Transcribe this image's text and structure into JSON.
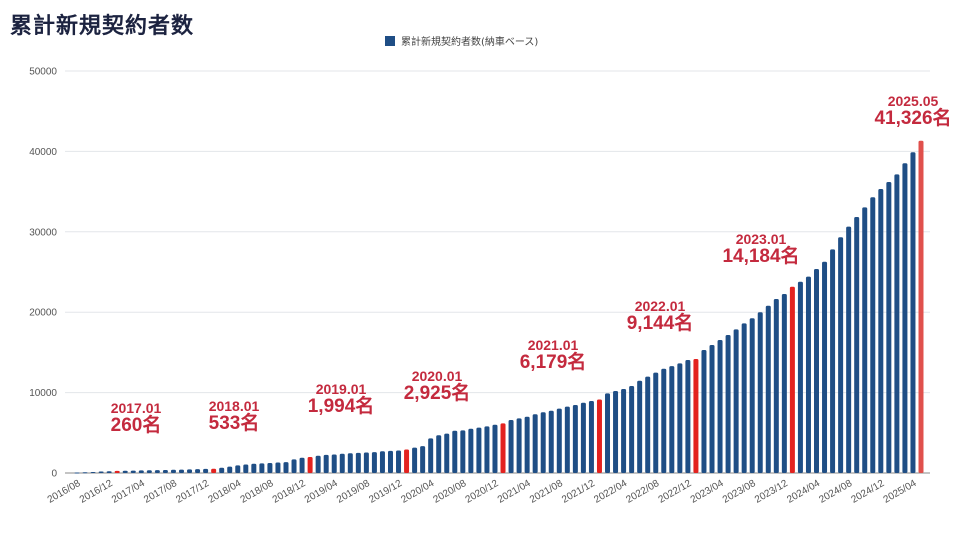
{
  "title": "累計新規契約者数",
  "chart_data": {
    "type": "bar",
    "title": "累計新規契約者数",
    "legend": [
      {
        "name": "累計新規契約者数(納車ベース)",
        "color": "#1f4e85",
        "placement": "top-center"
      }
    ],
    "xlabel": "",
    "ylabel": "",
    "ylim": [
      0,
      50000
    ],
    "yticks": [
      0,
      10000,
      20000,
      30000,
      40000,
      50000
    ],
    "grid": true,
    "colors": {
      "bar": "#1f4e85",
      "highlight": "#e3221f",
      "last": "#e0504c",
      "annotation": "#c42a3e"
    },
    "categories": [
      "2016/08",
      "2016/09",
      "2016/10",
      "2016/11",
      "2016/12",
      "2017/01",
      "2017/02",
      "2017/03",
      "2017/04",
      "2017/05",
      "2017/06",
      "2017/07",
      "2017/08",
      "2017/09",
      "2017/10",
      "2017/11",
      "2017/12",
      "2018/01",
      "2018/02",
      "2018/03",
      "2018/04",
      "2018/05",
      "2018/06",
      "2018/07",
      "2018/08",
      "2018/09",
      "2018/10",
      "2018/11",
      "2018/12",
      "2019/01",
      "2019/02",
      "2019/03",
      "2019/04",
      "2019/05",
      "2019/06",
      "2019/07",
      "2019/08",
      "2019/09",
      "2019/10",
      "2019/11",
      "2019/12",
      "2020/01",
      "2020/02",
      "2020/03",
      "2020/04",
      "2020/05",
      "2020/06",
      "2020/07",
      "2020/08",
      "2020/09",
      "2020/10",
      "2020/11",
      "2020/12",
      "2021/01",
      "2021/02",
      "2021/03",
      "2021/04",
      "2021/05",
      "2021/06",
      "2021/07",
      "2021/08",
      "2021/09",
      "2021/10",
      "2021/11",
      "2021/12",
      "2022/01",
      "2022/02",
      "2022/03",
      "2022/04",
      "2022/05",
      "2022/06",
      "2022/07",
      "2022/08",
      "2022/09",
      "2022/10",
      "2022/11",
      "2022/12",
      "2023/01",
      "2023/02",
      "2023/03",
      "2023/04",
      "2023/05",
      "2023/06",
      "2023/07",
      "2023/08",
      "2023/09",
      "2023/10",
      "2023/11",
      "2023/12",
      "2024/01",
      "2024/02",
      "2024/03",
      "2024/04",
      "2024/05",
      "2024/06",
      "2024/07",
      "2024/08",
      "2024/09",
      "2024/10",
      "2024/11",
      "2024/12",
      "2025/01",
      "2025/02",
      "2025/03",
      "2025/04",
      "2025/05"
    ],
    "values": [
      60,
      90,
      130,
      180,
      220,
      260,
      280,
      300,
      320,
      340,
      360,
      380,
      400,
      420,
      450,
      480,
      510,
      533,
      650,
      800,
      950,
      1050,
      1150,
      1200,
      1250,
      1300,
      1350,
      1700,
      1900,
      1994,
      2150,
      2250,
      2300,
      2400,
      2450,
      2500,
      2550,
      2600,
      2700,
      2750,
      2800,
      2925,
      3150,
      3350,
      4300,
      4700,
      4900,
      5250,
      5300,
      5500,
      5650,
      5800,
      6000,
      6179,
      6590,
      6800,
      7000,
      7300,
      7550,
      7750,
      8000,
      8250,
      8460,
      8740,
      8950,
      9144,
      9910,
      10200,
      10450,
      10820,
      11480,
      11980,
      12480,
      12970,
      13300,
      13640,
      14050,
      14184,
      15300,
      15920,
      16540,
      17160,
      17870,
      18610,
      19240,
      19990,
      20810,
      21640,
      22260,
      23170,
      23790,
      24420,
      25370,
      26280,
      27820,
      29320,
      30640,
      31840,
      33040,
      34290,
      35320,
      36200,
      37150,
      38520,
      39890,
      41326
    ],
    "highlighted": [
      "2017/01",
      "2018/01",
      "2019/01",
      "2020/01",
      "2021/01",
      "2022/01",
      "2023/01",
      "2024/01",
      "2025/05"
    ],
    "xtick_labels": [
      "2016/08",
      "2016/12",
      "2017/04",
      "2017/08",
      "2017/12",
      "2018/04",
      "2018/08",
      "2018/12",
      "2019/04",
      "2019/08",
      "2019/12",
      "2020/04",
      "2020/08",
      "2020/12",
      "2021/04",
      "2021/08",
      "2021/12",
      "2022/04",
      "2022/08",
      "2022/12",
      "2023/04",
      "2023/08",
      "2023/12",
      "2024/04",
      "2024/08",
      "2024/12",
      "2025/04"
    ],
    "annotations": [
      {
        "date": "2017.01",
        "value": "260名"
      },
      {
        "date": "2018.01",
        "value": "533名"
      },
      {
        "date": "2019.01",
        "value": "1,994名"
      },
      {
        "date": "2020.01",
        "value": "2,925名"
      },
      {
        "date": "2021.01",
        "value": "6,179名"
      },
      {
        "date": "2022.01",
        "value": "9,144名"
      },
      {
        "date": "2023.01",
        "value": "14,184名"
      },
      {
        "date": "2025.05",
        "value": "41,326名"
      }
    ]
  }
}
